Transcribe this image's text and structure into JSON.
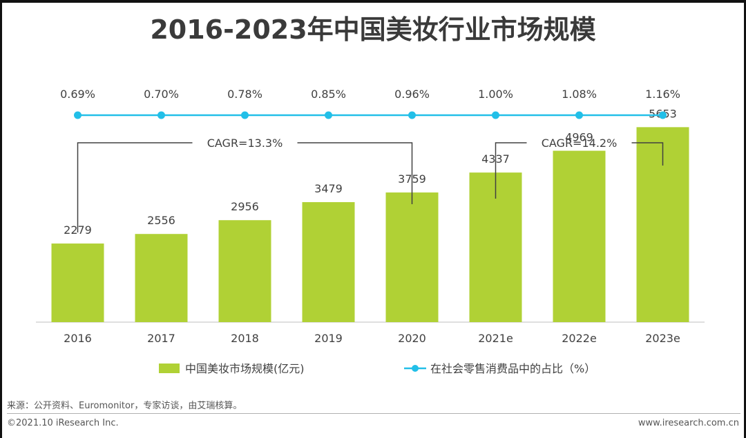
{
  "title": "2016-2023年中国美妆行业市场规模",
  "chart_data": {
    "type": "bar",
    "categories": [
      "2016",
      "2017",
      "2018",
      "2019",
      "2020",
      "2021e",
      "2022e",
      "2023e"
    ],
    "series": [
      {
        "name": "中国美妆市场规模(亿元)",
        "kind": "bar",
        "values": [
          2279,
          2556,
          2956,
          3479,
          3759,
          4337,
          4969,
          5653
        ],
        "labels": [
          "2279",
          "2556",
          "2956",
          "3479",
          "3759",
          "4337",
          "4969",
          "5653"
        ],
        "color": "#b0d135"
      },
      {
        "name": "在社会零售消费品中的占比（%）",
        "kind": "line",
        "values": [
          0.69,
          0.7,
          0.78,
          0.85,
          0.96,
          1.0,
          1.08,
          1.16
        ],
        "labels": [
          "0.69%",
          "0.70%",
          "0.78%",
          "0.85%",
          "0.96%",
          "1.00%",
          "1.08%",
          "1.16%"
        ],
        "color": "#22bfe8"
      }
    ],
    "annotations": [
      {
        "text": "CAGR=13.3%",
        "from": "2016",
        "to": "2020"
      },
      {
        "text": "CAGR=14.2%",
        "from": "2021e",
        "to": "2023e"
      }
    ],
    "ylim": [
      0,
      6000
    ],
    "legend_position": "bottom",
    "grid": false
  },
  "footer": {
    "source": "来源：公开资料、Euromonitor，专家访谈，由艾瑞核算。",
    "copyright": "©2021.10 iResearch Inc.",
    "website": "www.iresearch.com.cn"
  }
}
